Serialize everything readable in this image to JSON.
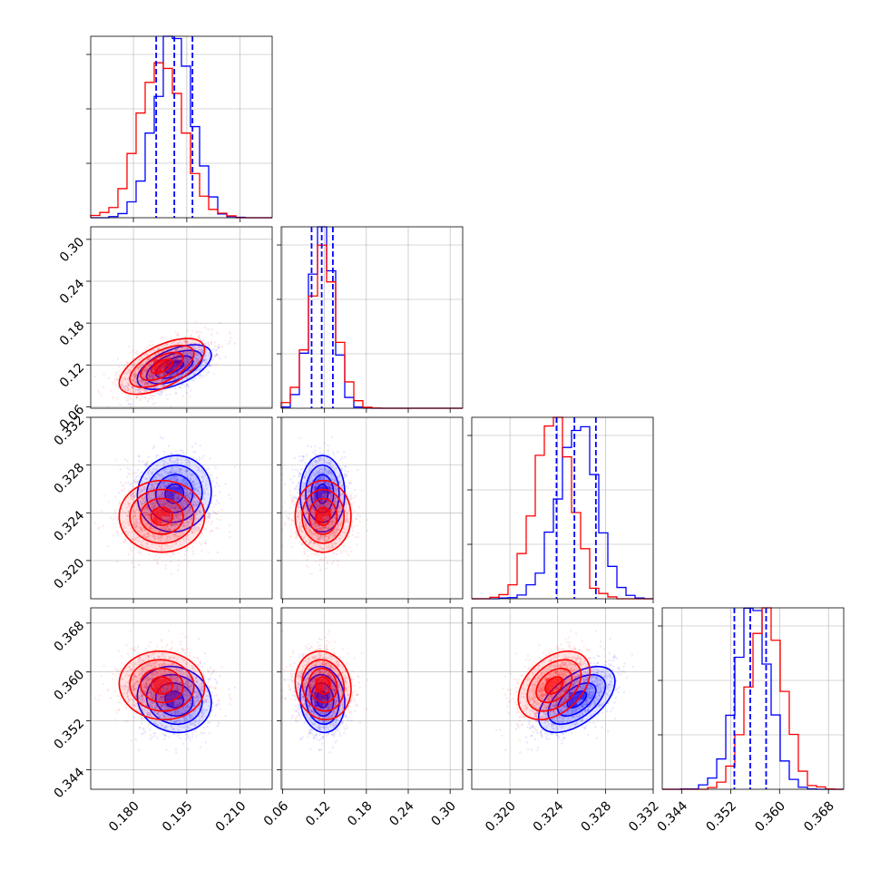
{
  "chart_data": {
    "type": "corner",
    "title": "",
    "grid": true,
    "parameters": [
      {
        "range": [
          0.168,
          0.219
        ],
        "ticks": [
          0.18,
          0.195,
          0.21
        ],
        "tick_labels": [
          "0.180",
          "0.195",
          "0.210"
        ]
      },
      {
        "range": [
          0.058,
          0.318
        ],
        "ticks": [
          0.06,
          0.12,
          0.18,
          0.24,
          0.3
        ],
        "tick_labels": [
          "0.06",
          "0.12",
          "0.18",
          "0.24",
          "0.30"
        ]
      },
      {
        "range": [
          0.3168,
          0.332
        ],
        "ticks": [
          0.32,
          0.324,
          0.328,
          0.332
        ],
        "tick_labels": [
          "0.320",
          "0.324",
          "0.328",
          "0.332"
        ]
      },
      {
        "range": [
          0.3408,
          0.3705
        ],
        "ticks": [
          0.344,
          0.352,
          0.36,
          0.368
        ],
        "tick_labels": [
          "0.344",
          "0.352",
          "0.360",
          "0.368"
        ]
      }
    ],
    "series": [
      {
        "color": "#0000ff",
        "mean": [
          0.1915,
          0.117,
          0.3256,
          0.3555
        ],
        "std": [
          0.0052,
          0.016,
          0.0016,
          0.0027
        ],
        "corr": [
          [
            1,
            0.55,
            0.05,
            -0.1
          ],
          [
            0.55,
            1,
            0.0,
            -0.1
          ],
          [
            0.05,
            0.0,
            1,
            0.55
          ],
          [
            -0.1,
            -0.1,
            0.55,
            1
          ]
        ],
        "quantiles": [
          [
            0.1864,
            0.1915,
            0.1966
          ],
          [
            0.1015,
            0.116,
            0.132
          ],
          [
            0.3239,
            0.3254,
            0.3272
          ],
          [
            0.3526,
            0.3552,
            0.3578
          ]
        ]
      },
      {
        "color": "#ff0000",
        "mean": [
          0.188,
          0.118,
          0.3237,
          0.3578
        ],
        "std": [
          0.006,
          0.02,
          0.0015,
          0.0028
        ],
        "corr": [
          [
            1,
            0.6,
            0.0,
            -0.05
          ],
          [
            0.6,
            1,
            0.0,
            -0.1
          ],
          [
            0.0,
            0.0,
            1,
            0.4
          ],
          [
            -0.05,
            -0.1,
            0.4,
            1
          ]
        ]
      }
    ]
  }
}
